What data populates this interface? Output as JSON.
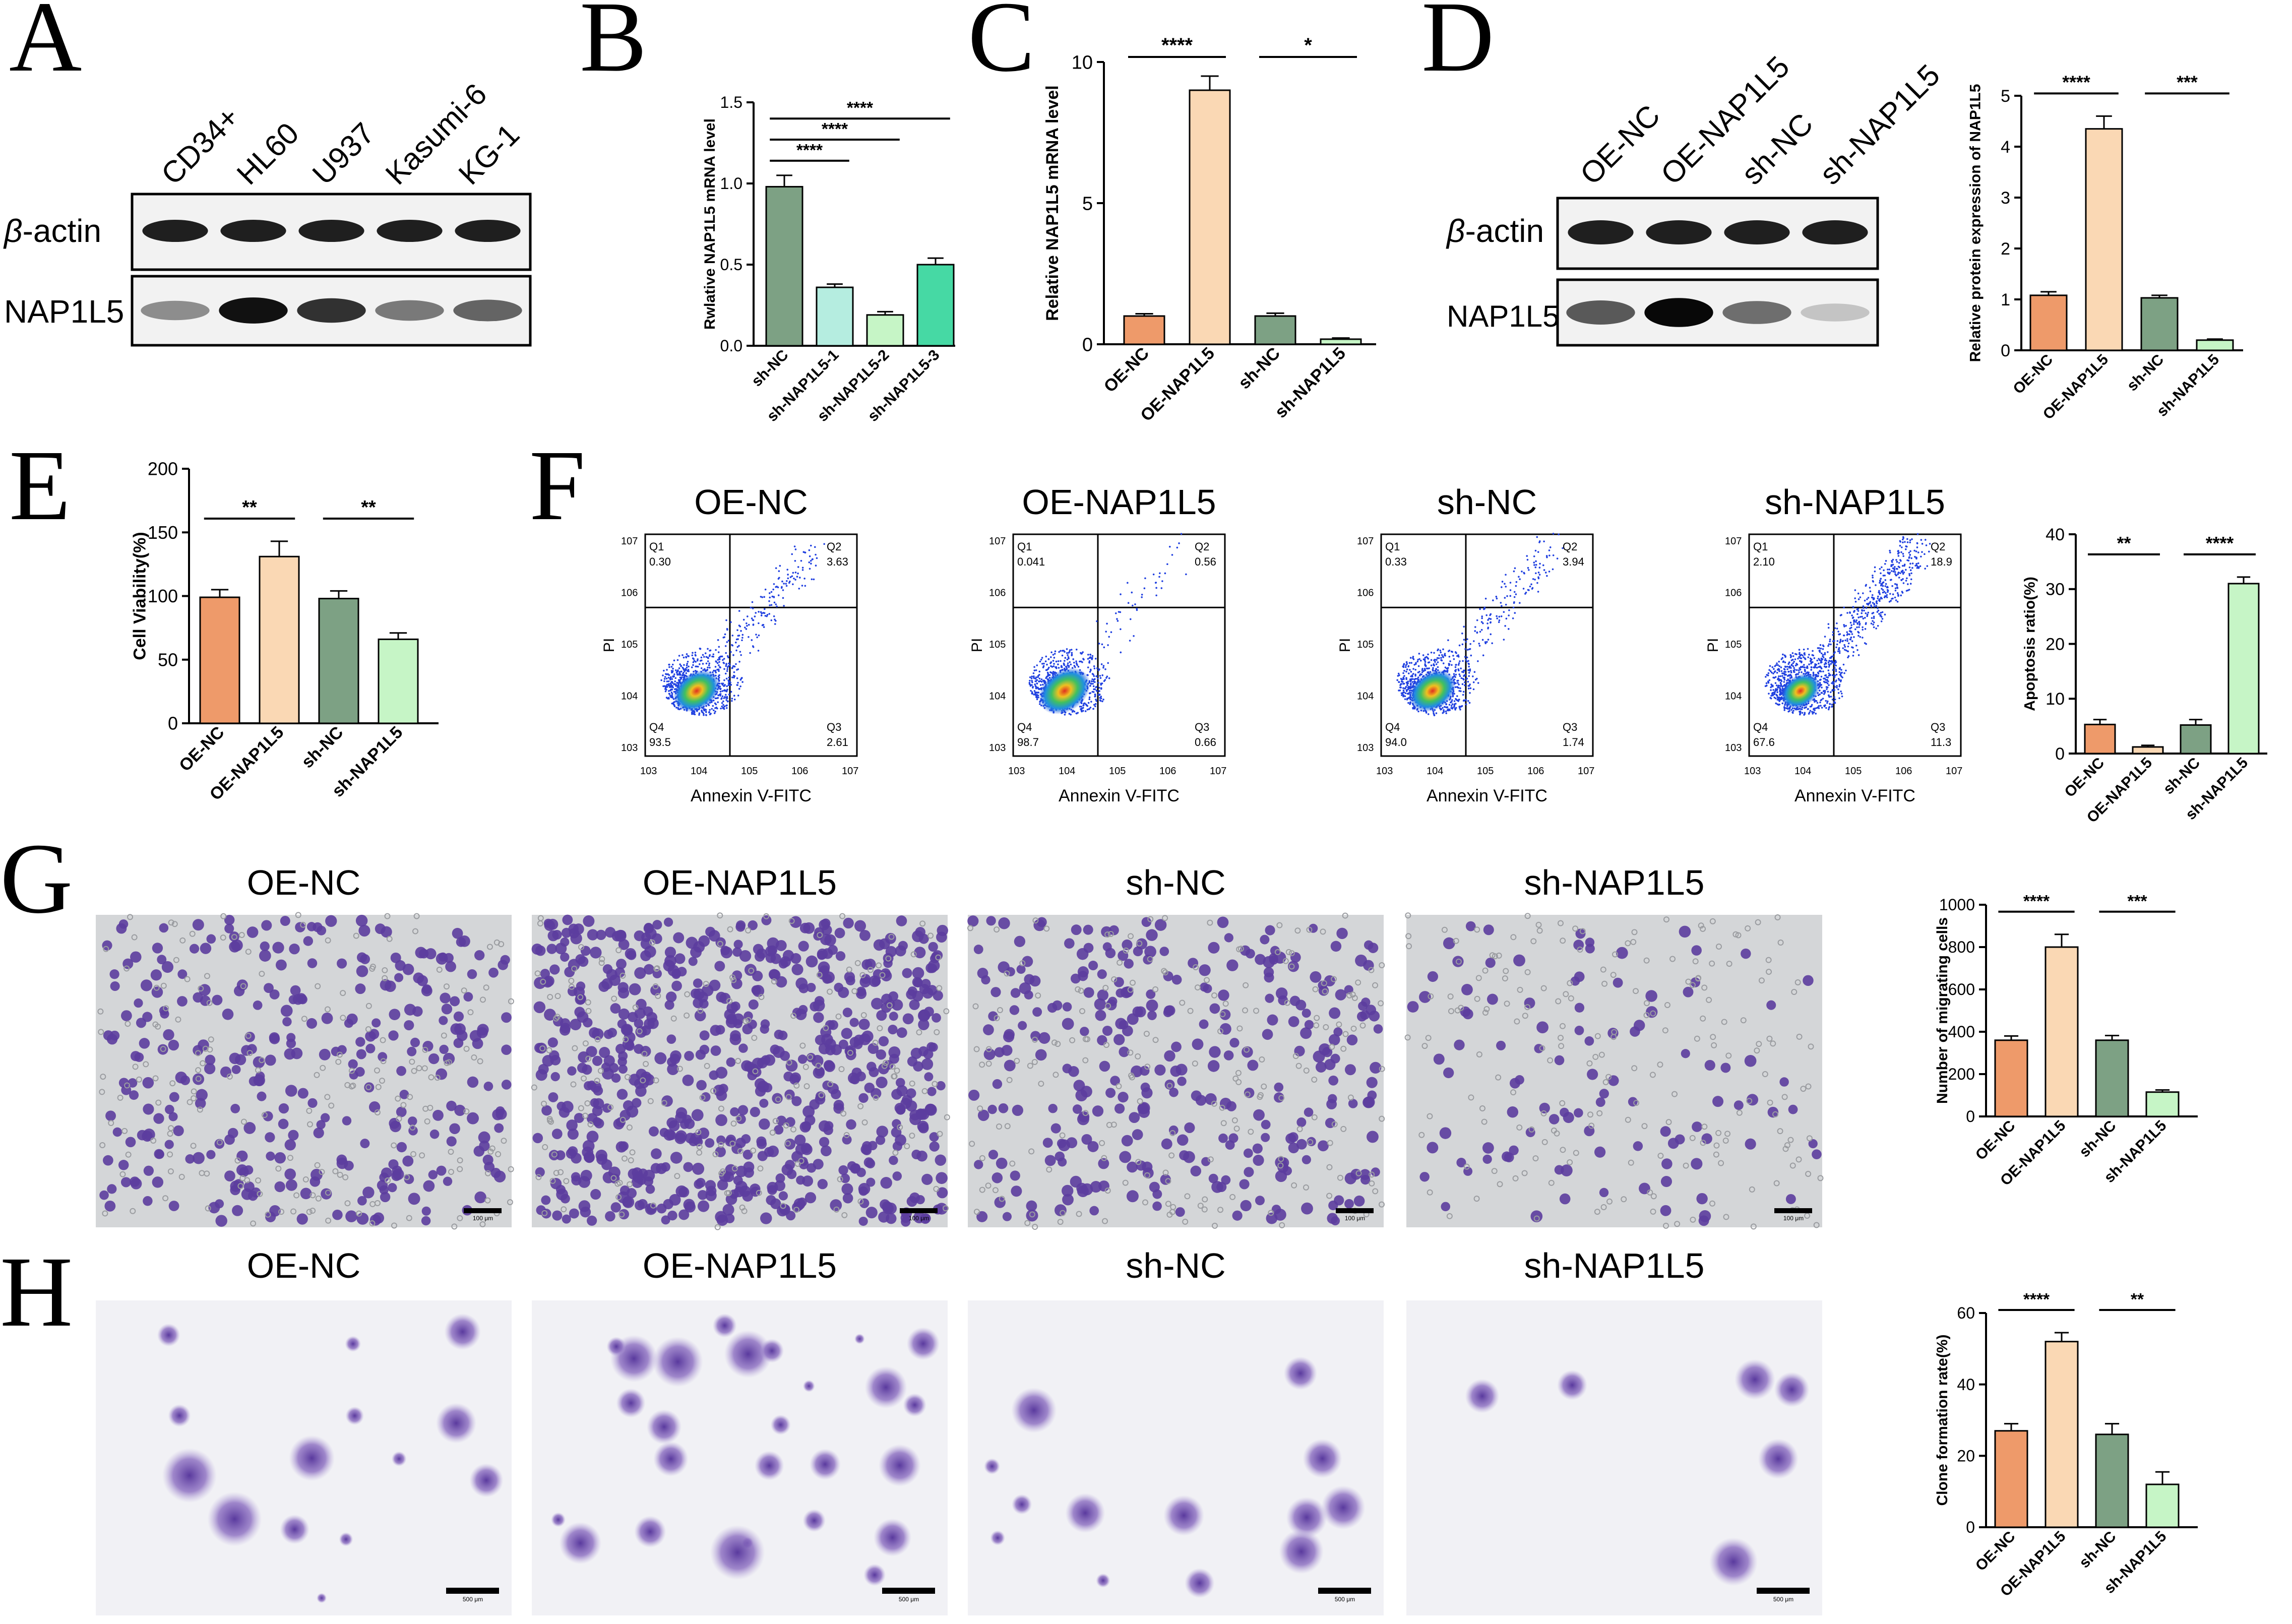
{
  "panel_letters": [
    "A",
    "B",
    "C",
    "D",
    "E",
    "F",
    "G",
    "H"
  ],
  "colors": {
    "oe_nc": "#EE9A6A",
    "oe_nap1l5": "#FAD8B4",
    "sh_nc": "#7DA184",
    "sh_nap1l5": "#C6F5C6",
    "sh_nap1l5_1": "#B5EDE0",
    "sh_nap1l5_2": "#C6F5C6",
    "sh_nap1l5_3": "#46D9A4",
    "stain": "#5C3D9E"
  },
  "western_a": {
    "lanes": [
      "CD34+",
      "HL60",
      "U937",
      "Kasumi-6",
      "KG-1"
    ],
    "rows": [
      "β-actin",
      "NAP1L5"
    ],
    "beta_prefix": "β",
    "beta_suffix": "-actin",
    "nap_row": "NAP1L5",
    "nap_intensity": [
      0.35,
      0.95,
      0.8,
      0.45,
      0.55
    ]
  },
  "western_d": {
    "lanes": [
      "OE-NC",
      "OE-NAP1L5",
      "sh-NC",
      "sh-NAP1L5"
    ],
    "beta_prefix": "β",
    "beta_suffix": "-actin",
    "nap_row": "NAP1L5",
    "nap_intensity": [
      0.6,
      1.0,
      0.5,
      0.08
    ]
  },
  "flow": {
    "xlabel": "Annexin V-FITC",
    "ylabel": "PI",
    "ticks": [
      "10",
      "3",
      "4",
      "5",
      "6",
      "7"
    ],
    "panels": [
      {
        "title": "OE-NC",
        "q1_label": "Q1",
        "q1": "0.30",
        "q2_label": "Q2",
        "q2": "3.63",
        "q3_label": "Q3",
        "q3": "2.61",
        "q4_label": "Q4",
        "q4": "93.5"
      },
      {
        "title": "OE-NAP1L5",
        "q1_label": "Q1",
        "q1": "0.041",
        "q2_label": "Q2",
        "q2": "0.56",
        "q3_label": "Q3",
        "q3": "0.66",
        "q4_label": "Q4",
        "q4": "98.7"
      },
      {
        "title": "sh-NC",
        "q1_label": "Q1",
        "q1": "0.33",
        "q2_label": "Q2",
        "q2": "3.94",
        "q3_label": "Q3",
        "q3": "1.74",
        "q4_label": "Q4",
        "q4": "94.0"
      },
      {
        "title": "sh-NAP1L5",
        "q1_label": "Q1",
        "q1": "2.10",
        "q2_label": "Q2",
        "q2": "18.9",
        "q3_label": "Q3",
        "q3": "11.3",
        "q4_label": "Q4",
        "q4": "67.6"
      }
    ]
  },
  "micro_g": {
    "titles": [
      "OE-NC",
      "OE-NAP1L5",
      "sh-NC",
      "sh-NAP1L5"
    ],
    "scale_labels": [
      "100 μm",
      "100 μm",
      "100 μm",
      "100 μm"
    ],
    "cell_density": [
      360,
      800,
      360,
      115
    ]
  },
  "micro_h": {
    "titles": [
      "OE-NC",
      "OE-NAP1L5",
      "sh-NC",
      "sh-NAP1L5"
    ],
    "scale_labels": [
      "500 μm",
      "500 μm",
      "500 μm",
      "500 μm"
    ],
    "colony_rate": [
      27,
      52,
      26,
      12
    ]
  },
  "chart_data": [
    {
      "panel": "B",
      "type": "bar",
      "categories": [
        "sh-NC",
        "sh-NAP1L5-1",
        "sh-NAP1L5-2",
        "sh-NAP1L5-3"
      ],
      "values": [
        0.98,
        0.36,
        0.19,
        0.5
      ],
      "errors": [
        0.07,
        0.02,
        0.02,
        0.04
      ],
      "ylabel": "Rwlative NAP1L5 mRNA level",
      "ylim": [
        0,
        1.5
      ],
      "yticks": [
        "0.0",
        "0.5",
        "1.0",
        "1.5"
      ],
      "significance": [
        {
          "from": 0,
          "to": 1,
          "label": "****"
        },
        {
          "from": 0,
          "to": 2,
          "label": "****"
        },
        {
          "from": 0,
          "to": 3,
          "label": "****"
        }
      ]
    },
    {
      "panel": "C",
      "type": "bar",
      "categories": [
        "OE-NC",
        "OE-NAP1L5",
        "sh-NC",
        "sh-NAP1L5"
      ],
      "values": [
        1.0,
        9.0,
        1.0,
        0.18
      ],
      "errors": [
        0.08,
        0.5,
        0.1,
        0.04
      ],
      "ylabel": "Relative NAP1L5 mRNA level",
      "ylim": [
        0,
        10
      ],
      "yticks": [
        "0",
        "5",
        "10"
      ],
      "significance": [
        {
          "from": 0,
          "to": 1,
          "label": "****"
        },
        {
          "from": 2,
          "to": 3,
          "label": "*"
        }
      ]
    },
    {
      "panel": "D",
      "type": "bar",
      "categories": [
        "OE-NC",
        "OE-NAP1L5",
        "sh-NC",
        "sh-NAP1L5"
      ],
      "values": [
        1.08,
        4.35,
        1.03,
        0.2
      ],
      "errors": [
        0.07,
        0.25,
        0.05,
        0.02
      ],
      "ylabel": "Relative protein expression of NAP1L5",
      "ylim": [
        0,
        5
      ],
      "yticks": [
        "0",
        "1",
        "2",
        "3",
        "4",
        "5"
      ],
      "significance": [
        {
          "from": 0,
          "to": 1,
          "label": "****"
        },
        {
          "from": 2,
          "to": 3,
          "label": "***"
        }
      ]
    },
    {
      "panel": "E",
      "type": "bar",
      "categories": [
        "OE-NC",
        "OE-NAP1L5",
        "sh-NC",
        "sh-NAP1L5"
      ],
      "values": [
        99,
        131,
        98,
        66
      ],
      "errors": [
        6,
        12,
        6,
        5
      ],
      "ylabel": "Cell Viability(%)",
      "ylim": [
        0,
        200
      ],
      "yticks": [
        "0",
        "50",
        "100",
        "150",
        "200"
      ],
      "significance": [
        {
          "from": 0,
          "to": 1,
          "label": "**"
        },
        {
          "from": 2,
          "to": 3,
          "label": "**"
        }
      ]
    },
    {
      "panel": "F",
      "type": "bar",
      "categories": [
        "OE-NC",
        "OE-NAP1L5",
        "sh-NC",
        "sh-NAP1L5"
      ],
      "values": [
        5.3,
        1.2,
        5.2,
        31
      ],
      "errors": [
        0.9,
        0.3,
        1.0,
        1.2
      ],
      "ylabel": "Apoptosis ratio(%)",
      "ylim": [
        0,
        40
      ],
      "yticks": [
        "0",
        "10",
        "20",
        "30",
        "40"
      ],
      "significance": [
        {
          "from": 0,
          "to": 1,
          "label": "**"
        },
        {
          "from": 2,
          "to": 3,
          "label": "****"
        }
      ]
    },
    {
      "panel": "G",
      "type": "bar",
      "categories": [
        "OE-NC",
        "OE-NAP1L5",
        "sh-NC",
        "sh-NAP1L5"
      ],
      "values": [
        360,
        800,
        360,
        115
      ],
      "errors": [
        20,
        60,
        22,
        10
      ],
      "ylabel": "Number of migrating cells",
      "ylim": [
        0,
        1000
      ],
      "yticks": [
        "0",
        "200",
        "400",
        "600",
        "800",
        "1000"
      ],
      "significance": [
        {
          "from": 0,
          "to": 1,
          "label": "****"
        },
        {
          "from": 2,
          "to": 3,
          "label": "***"
        }
      ]
    },
    {
      "panel": "H",
      "type": "bar",
      "categories": [
        "OE-NC",
        "OE-NAP1L5",
        "sh-NC",
        "sh-NAP1L5"
      ],
      "values": [
        27,
        52,
        26,
        12
      ],
      "errors": [
        2,
        2.5,
        3,
        3.5
      ],
      "ylabel": "Clone formation rate(%)",
      "ylim": [
        0,
        60
      ],
      "yticks": [
        "0",
        "20",
        "40",
        "60"
      ],
      "significance": [
        {
          "from": 0,
          "to": 1,
          "label": "****"
        },
        {
          "from": 2,
          "to": 3,
          "label": "**"
        }
      ]
    }
  ]
}
